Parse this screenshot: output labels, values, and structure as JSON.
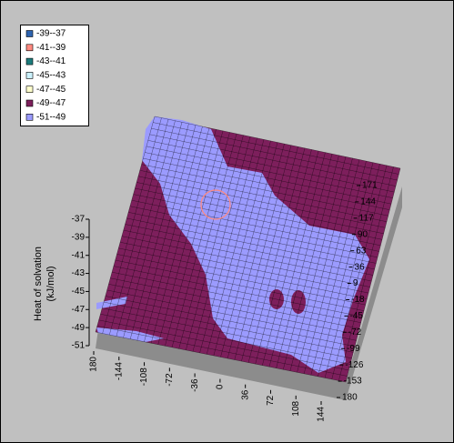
{
  "chart_data": {
    "type": "surface",
    "series": [
      {
        "name": "-39--37",
        "color": "#2e64b0"
      },
      {
        "name": "-41--39",
        "color": "#ff8a80"
      },
      {
        "name": "-43--41",
        "color": "#1c7c7c"
      },
      {
        "name": "-45--43",
        "color": "#ccf2ff"
      },
      {
        "name": "-47--45",
        "color": "#ffffcc"
      },
      {
        "name": "-49--47",
        "color": "#7d1f5c"
      },
      {
        "name": "-51--49",
        "color": "#9b9bff"
      }
    ],
    "z_label": [
      "Heat of solvation",
      "(kJ/mol)"
    ],
    "zlim": [
      -51,
      -37
    ],
    "zticks": [
      -37,
      -39,
      -41,
      -43,
      -45,
      -47,
      -49,
      -51
    ],
    "xlim": [
      -180,
      144
    ],
    "xticks": [
      {
        "value": -180,
        "label": "180"
      },
      -144,
      -108,
      -72,
      -36,
      0,
      36,
      72,
      108,
      144
    ],
    "ylim": [
      -180,
      171
    ],
    "yticks": [
      171,
      144,
      117,
      90,
      63,
      36,
      9,
      -18,
      -45,
      -72,
      -99,
      -126,
      -153,
      {
        "value": -180,
        "label": "180"
      }
    ]
  }
}
